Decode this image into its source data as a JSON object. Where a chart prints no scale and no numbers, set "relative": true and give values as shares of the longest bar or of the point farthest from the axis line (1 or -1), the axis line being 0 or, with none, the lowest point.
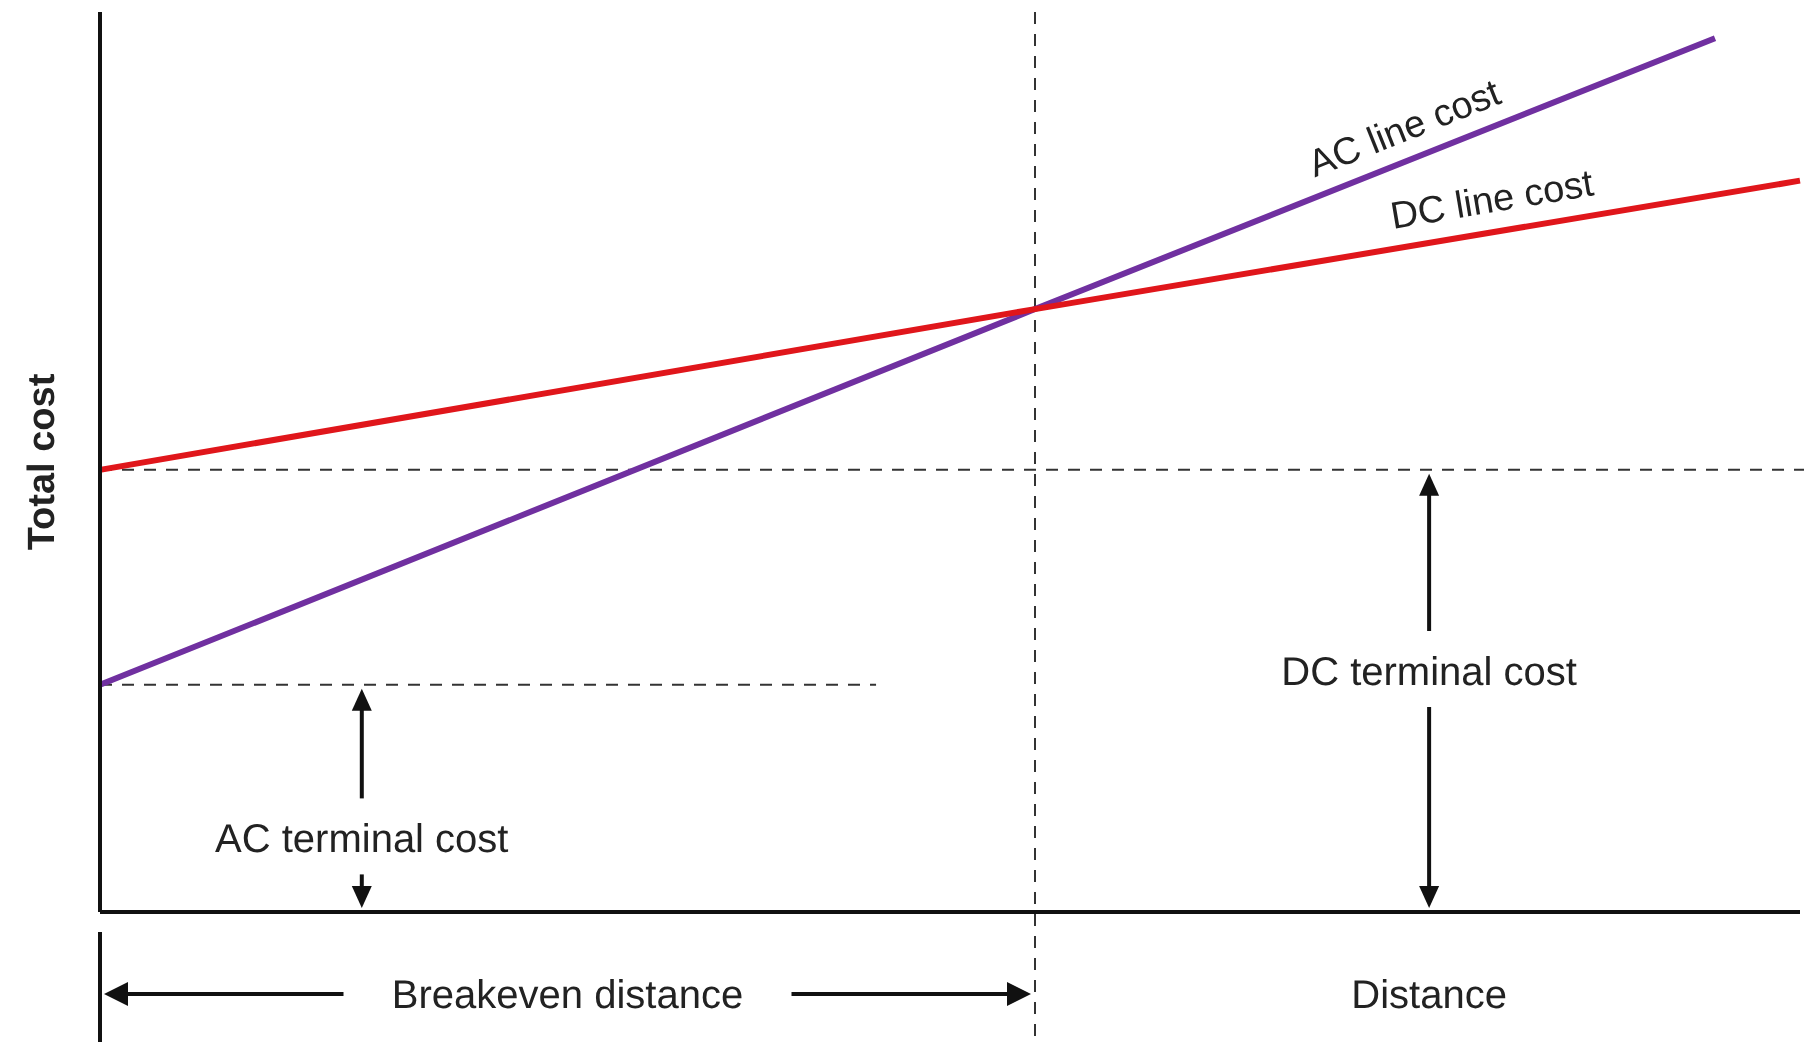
{
  "chart_data": {
    "type": "line",
    "relative": true,
    "xlabel": "Distance",
    "ylabel": "Total cost",
    "line_style": "solid",
    "categories": [
      null,
      null,
      null,
      null,
      null,
      null,
      null,
      null,
      null,
      null,
      null,
      null,
      null,
      null,
      null,
      null,
      null,
      null,
      null,
      null,
      null
    ],
    "series": [
      {
        "name": "AC line cost",
        "color": "#7030a0",
        "values": [
          0.26,
          null,
          null,
          null,
          null,
          null,
          null,
          null,
          null,
          null,
          null,
          0.69,
          null,
          null,
          null,
          null,
          null,
          null,
          null,
          1,
          null
        ]
      },
      {
        "name": "DC line cost",
        "color": "#e0161b",
        "values": [
          0.506,
          null,
          null,
          null,
          null,
          null,
          null,
          null,
          null,
          null,
          null,
          0.69,
          null,
          null,
          null,
          null,
          null,
          null,
          null,
          null,
          0.837
        ]
      }
    ],
    "ref_lines": [
      {
        "axis": "y",
        "value": 0.506,
        "line_style": "dashed",
        "color": "#333333"
      },
      {
        "axis": "y",
        "value": 0.26,
        "line_style": "dashed",
        "color": "#333333"
      }
    ],
    "annotations": [
      "AC terminal cost",
      "DC terminal cost",
      "Breakeven distance"
    ]
  }
}
